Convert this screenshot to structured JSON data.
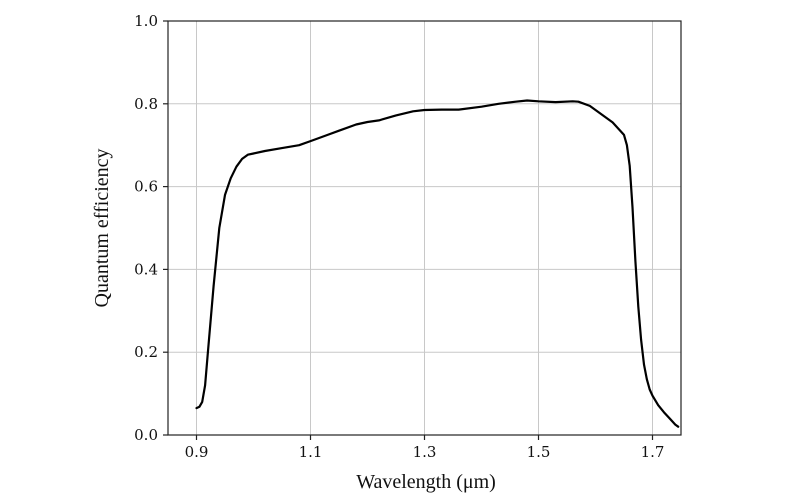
{
  "chart_data": {
    "type": "line",
    "title": "",
    "xlabel": "Wavelength (μm)",
    "ylabel": "Quantum efficiency",
    "xlim": [
      0.85,
      1.75
    ],
    "ylim": [
      0.0,
      1.0
    ],
    "grid": true,
    "x_ticks": [
      0.9,
      1.1,
      1.3,
      1.5,
      1.7
    ],
    "x_tick_labels": [
      "0.9",
      "1.1",
      "1.3",
      "1.5",
      "1.7"
    ],
    "y_ticks": [
      0.0,
      0.2,
      0.4,
      0.6,
      0.8,
      1.0
    ],
    "y_tick_labels": [
      "0.0",
      "0.2",
      "0.4",
      "0.6",
      "0.8",
      "1.0"
    ],
    "series": [
      {
        "color": "#000000",
        "x": [
          0.9,
          0.905,
          0.91,
          0.915,
          0.92,
          0.93,
          0.94,
          0.95,
          0.96,
          0.97,
          0.98,
          0.99,
          1.0,
          1.02,
          1.05,
          1.08,
          1.1,
          1.13,
          1.15,
          1.18,
          1.2,
          1.22,
          1.25,
          1.28,
          1.3,
          1.33,
          1.36,
          1.4,
          1.43,
          1.46,
          1.48,
          1.5,
          1.53,
          1.56,
          1.57,
          1.59,
          1.61,
          1.63,
          1.64,
          1.65,
          1.655,
          1.66,
          1.665,
          1.67,
          1.675,
          1.68,
          1.685,
          1.69,
          1.695,
          1.7,
          1.71,
          1.72,
          1.73,
          1.74,
          1.745
        ],
        "y": [
          0.065,
          0.068,
          0.08,
          0.12,
          0.2,
          0.36,
          0.5,
          0.58,
          0.62,
          0.648,
          0.667,
          0.677,
          0.68,
          0.686,
          0.693,
          0.7,
          0.71,
          0.725,
          0.735,
          0.75,
          0.756,
          0.76,
          0.772,
          0.782,
          0.785,
          0.786,
          0.786,
          0.793,
          0.8,
          0.805,
          0.808,
          0.806,
          0.804,
          0.806,
          0.805,
          0.795,
          0.775,
          0.755,
          0.74,
          0.725,
          0.7,
          0.65,
          0.55,
          0.42,
          0.31,
          0.23,
          0.17,
          0.135,
          0.11,
          0.095,
          0.072,
          0.055,
          0.04,
          0.025,
          0.02
        ]
      }
    ]
  }
}
